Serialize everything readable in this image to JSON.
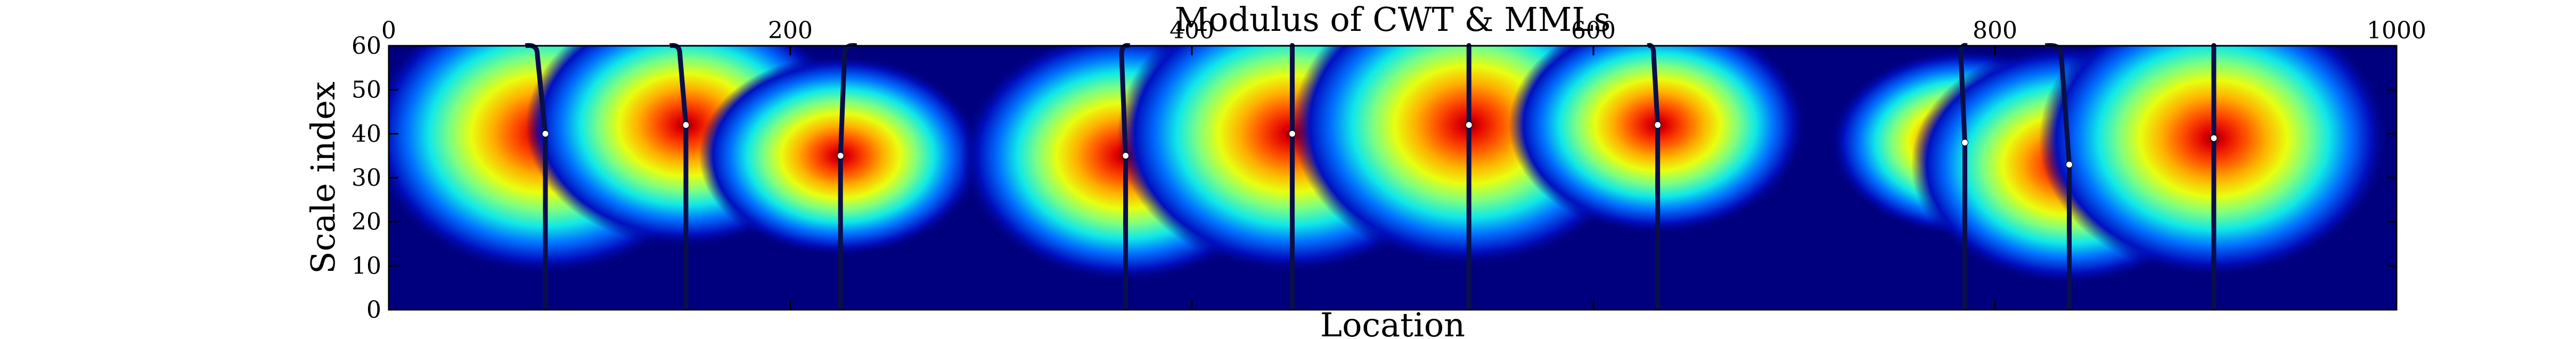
{
  "chart_data": {
    "type": "heatmap",
    "title": "Modulus of CWT & MMLs",
    "xlabel": "Location",
    "ylabel": "Scale index",
    "xlim": [
      0,
      1000
    ],
    "ylim": [
      0,
      60
    ],
    "xticks": [
      0,
      200,
      400,
      600,
      800,
      1000
    ],
    "yticks": [
      0,
      10,
      20,
      30,
      40,
      50,
      60
    ],
    "colormap": "jet",
    "background_color": "#00007f",
    "line_color": "#0a0f4a",
    "marker_color": "#ffffff",
    "blobs": [
      {
        "x": 78,
        "y": 40,
        "intensity": 1.0
      },
      {
        "x": 148,
        "y": 42,
        "intensity": 0.82
      },
      {
        "x": 225,
        "y": 35,
        "intensity": 0.62
      },
      {
        "x": 367,
        "y": 35,
        "intensity": 0.86
      },
      {
        "x": 450,
        "y": 40,
        "intensity": 0.98
      },
      {
        "x": 538,
        "y": 42,
        "intensity": 1.0
      },
      {
        "x": 632,
        "y": 42,
        "intensity": 0.7
      },
      {
        "x": 785,
        "y": 38,
        "intensity": 0.55
      },
      {
        "x": 837,
        "y": 33,
        "intensity": 0.8
      },
      {
        "x": 909,
        "y": 39,
        "intensity": 0.98
      }
    ],
    "maxima_lines": [
      {
        "x_bottom": 78,
        "x_top": 74,
        "max_y": 40,
        "curl": -6
      },
      {
        "x_bottom": 148,
        "x_top": 145,
        "max_y": 42,
        "curl": -5
      },
      {
        "x_bottom": 225,
        "x_top": 227,
        "max_y": 35,
        "curl": 6
      },
      {
        "x_bottom": 367,
        "x_top": 365,
        "max_y": 35,
        "curl": 4
      },
      {
        "x_bottom": 450,
        "x_top": 450,
        "max_y": 40,
        "curl": 0
      },
      {
        "x_bottom": 538,
        "x_top": 538,
        "max_y": 42,
        "curl": 0
      },
      {
        "x_bottom": 632,
        "x_top": 630,
        "max_y": 42,
        "curl": -3
      },
      {
        "x_bottom": 785,
        "x_top": 783,
        "max_y": 38,
        "curl": 3
      },
      {
        "x_bottom": 837,
        "x_top": 833,
        "max_y": 33,
        "curl": -8
      },
      {
        "x_bottom": 909,
        "x_top": 909,
        "max_y": 39,
        "curl": 0
      }
    ]
  }
}
